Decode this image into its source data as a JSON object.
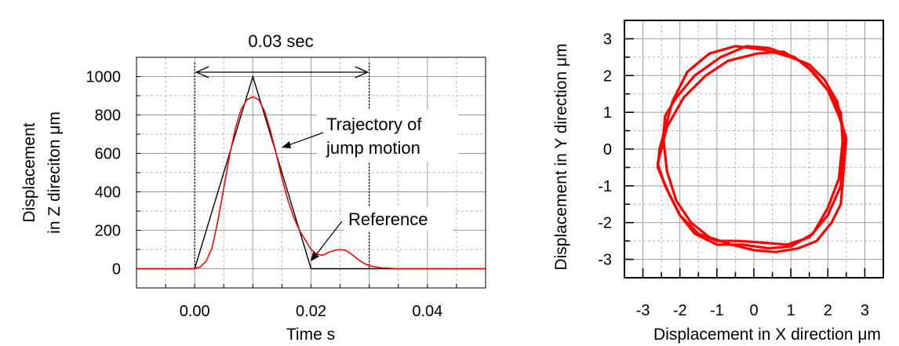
{
  "chart_data": [
    {
      "type": "line",
      "xlabel": "Time s",
      "ylabel_line1": "Displacement",
      "ylabel_line2": "in Z direciton μm",
      "xlim": [
        -0.01,
        0.05
      ],
      "ylim": [
        -100,
        1100
      ],
      "x_ticks": [
        0.0,
        0.02,
        0.04
      ],
      "x_tick_labels": [
        "0.00",
        "0.02",
        "0.04"
      ],
      "y_ticks": [
        0,
        200,
        400,
        600,
        800,
        1000
      ],
      "y_tick_labels": [
        "0",
        "200",
        "400",
        "600",
        "800",
        "1000"
      ],
      "grid": true,
      "series": [
        {
          "name": "Reference",
          "color": "#000000",
          "x": [
            -0.01,
            0.0,
            0.01,
            0.02,
            0.05
          ],
          "y": [
            0,
            0,
            1000,
            0,
            0
          ]
        },
        {
          "name": "Trajectory of jump motion",
          "color": "#ff0000",
          "x": [
            -0.01,
            0.0,
            0.001,
            0.002,
            0.003,
            0.004,
            0.005,
            0.006,
            0.007,
            0.008,
            0.009,
            0.01,
            0.011,
            0.012,
            0.013,
            0.014,
            0.015,
            0.016,
            0.017,
            0.018,
            0.019,
            0.02,
            0.021,
            0.022,
            0.023,
            0.024,
            0.025,
            0.026,
            0.027,
            0.028,
            0.029,
            0.03,
            0.032,
            0.035,
            0.04,
            0.045,
            0.05
          ],
          "y": [
            0,
            0,
            10,
            40,
            110,
            250,
            420,
            590,
            730,
            830,
            880,
            895,
            880,
            820,
            720,
            600,
            470,
            360,
            270,
            200,
            150,
            100,
            75,
            70,
            85,
            95,
            100,
            95,
            75,
            50,
            30,
            15,
            5,
            0,
            0,
            0,
            0
          ]
        }
      ],
      "annotations": {
        "duration_label": "0.03 sec",
        "duration_start": 0.0,
        "duration_end": 0.03,
        "trajectory_label_line1": "Trajectory of",
        "trajectory_label_line2": "jump motion",
        "reference_label": "Reference"
      }
    },
    {
      "type": "line",
      "xlabel": "Displacement in X direction μm",
      "ylabel": "Displacement in Y direction μm",
      "xlim": [
        -3.5,
        3.5
      ],
      "ylim": [
        -3.5,
        3.5
      ],
      "x_ticks": [
        -3,
        -2,
        -1,
        0,
        1,
        2,
        3
      ],
      "x_tick_labels": [
        "-3",
        "-2",
        "-1",
        "0",
        "1",
        "2",
        "3"
      ],
      "y_ticks": [
        -3,
        -2,
        -1,
        0,
        1,
        2,
        3
      ],
      "y_tick_labels": [
        "-3",
        "-2",
        "-1",
        "0",
        "1",
        "2",
        "3"
      ],
      "grid": true,
      "series": [
        {
          "color": "#ff0000",
          "loops": [
            {
              "x": [
                2.5,
                2.4,
                2.35,
                2.1,
                1.7,
                1.2,
                0.6,
                0.0,
                -0.6,
                -1.2,
                -1.7,
                -2.1,
                -2.35,
                -2.45,
                -2.4,
                -2.1,
                -1.6,
                -0.9,
                -0.2,
                0.4,
                1.1,
                1.6,
                2.0,
                2.3,
                2.5
              ],
              "y": [
                0.3,
                -0.9,
                -1.5,
                -2.0,
                -2.5,
                -2.7,
                -2.8,
                -2.75,
                -2.6,
                -2.4,
                -2.0,
                -1.4,
                -0.6,
                0.3,
                0.9,
                1.4,
                2.0,
                2.5,
                2.8,
                2.75,
                2.5,
                2.1,
                1.6,
                0.9,
                0.3
              ]
            },
            {
              "x": [
                2.45,
                2.35,
                2.0,
                1.5,
                0.9,
                0.3,
                -0.4,
                -1.0,
                -1.5,
                -2.0,
                -2.3,
                -2.6,
                -2.55,
                -2.2,
                -1.8,
                -1.2,
                -0.5,
                0.3,
                1.0,
                1.5,
                1.9,
                2.25,
                2.45
              ],
              "y": [
                0.4,
                -1.0,
                -1.8,
                -2.4,
                -2.6,
                -2.55,
                -2.5,
                -2.5,
                -2.3,
                -1.8,
                -1.2,
                -0.5,
                0.0,
                1.3,
                2.1,
                2.6,
                2.8,
                2.7,
                2.5,
                2.3,
                1.9,
                1.3,
                0.4
              ]
            },
            {
              "x": [
                2.4,
                2.3,
                2.0,
                1.6,
                1.0,
                0.4,
                -0.3,
                -1.0,
                -1.6,
                -2.0,
                -2.4,
                -2.6,
                -2.35,
                -1.9,
                -1.3,
                -0.7,
                0.1,
                0.8,
                1.4,
                2.0,
                2.35,
                2.4
              ],
              "y": [
                0.2,
                -0.8,
                -1.6,
                -2.3,
                -2.65,
                -2.7,
                -2.6,
                -2.6,
                -2.3,
                -1.8,
                -1.0,
                -0.4,
                0.6,
                1.4,
                2.0,
                2.4,
                2.6,
                2.65,
                2.3,
                1.6,
                1.0,
                0.2
              ]
            }
          ]
        }
      ]
    }
  ]
}
